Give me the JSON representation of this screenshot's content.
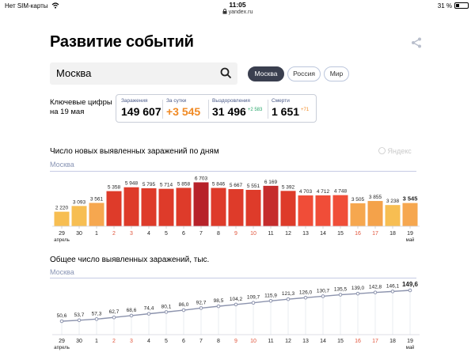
{
  "status_bar": {
    "carrier": "Нет SIM-карты",
    "time": "11:05",
    "url": "yandex.ru",
    "battery": "31 %"
  },
  "page": {
    "title": "Развитие событий"
  },
  "search": {
    "value": "Москва"
  },
  "regions": [
    {
      "label": "Москва",
      "active": true
    },
    {
      "label": "Россия",
      "active": false
    },
    {
      "label": "Мир",
      "active": false
    }
  ],
  "key_figures": {
    "label_line1": "Ключевые цифры",
    "label_line2": "на 19 мая",
    "stats": [
      {
        "label": "Заражения",
        "value": "149 607",
        "delta": ""
      },
      {
        "label": "За сутки",
        "value": "+3 545",
        "delta": ""
      },
      {
        "label": "Выздоровления",
        "value": "31 496",
        "delta": "+2 583"
      },
      {
        "label": "Смерти",
        "value": "1 651",
        "delta": "+71"
      }
    ]
  },
  "colors": {
    "accent_orange": "#f08a24",
    "accent_green": "#28a76a",
    "line": "#8c93ad"
  },
  "watermark": "Яндекс",
  "chart_data": [
    {
      "type": "bar",
      "title": "Число новых выявленных заражений по дням",
      "subtitle": "Москва",
      "categories": [
        "29",
        "30",
        "1",
        "2",
        "3",
        "4",
        "5",
        "6",
        "7",
        "8",
        "9",
        "10",
        "11",
        "12",
        "13",
        "14",
        "15",
        "16",
        "17",
        "18",
        "19"
      ],
      "month_labels": {
        "0": "апрель",
        "20": "май"
      },
      "weekend_indices": [
        3,
        4,
        10,
        11,
        17,
        18
      ],
      "values": [
        2220,
        3093,
        3561,
        5358,
        5948,
        5795,
        5714,
        5858,
        6703,
        5846,
        5667,
        5551,
        6169,
        5392,
        4703,
        4712,
        4748,
        3505,
        3855,
        3238,
        3545
      ],
      "labels": [
        "2 220",
        "3 093",
        "3 561",
        "5 358",
        "5 948",
        "5 795",
        "5 714",
        "5 858",
        "6 703",
        "5 846",
        "5 667",
        "5 551",
        "6 169",
        "5 392",
        "4 703",
        "4 712",
        "4 748",
        "3 505",
        "3 855",
        "3 238",
        "3 545"
      ],
      "ylim": [
        0,
        7000
      ],
      "grid": false
    },
    {
      "type": "line",
      "title": "Общее число выявленных заражений, тыс.",
      "subtitle": "Москва",
      "categories": [
        "29",
        "30",
        "1",
        "2",
        "3",
        "4",
        "5",
        "6",
        "7",
        "8",
        "9",
        "10",
        "11",
        "12",
        "13",
        "14",
        "15",
        "16",
        "17",
        "18",
        "19"
      ],
      "month_labels": {
        "0": "апрель",
        "20": "май"
      },
      "weekend_indices": [
        3,
        4,
        10,
        11,
        17,
        18
      ],
      "values": [
        50.6,
        53.7,
        57.3,
        62.7,
        68.6,
        74.4,
        80.1,
        86.0,
        92.7,
        98.5,
        104.2,
        109.7,
        115.9,
        121.3,
        126.0,
        130.7,
        135.5,
        139.0,
        142.8,
        146.1,
        149.6
      ],
      "labels": [
        "50,6",
        "53,7",
        "57,3",
        "62,7",
        "68,6",
        "74,4",
        "80,1",
        "86,0",
        "92,7",
        "98,5",
        "104,2",
        "109,7",
        "115,9",
        "121,3",
        "126,0",
        "130,7",
        "135,5",
        "139,0",
        "142,8",
        "146,1",
        "149,6"
      ],
      "ylim": [
        0,
        160
      ],
      "grid": false
    }
  ]
}
